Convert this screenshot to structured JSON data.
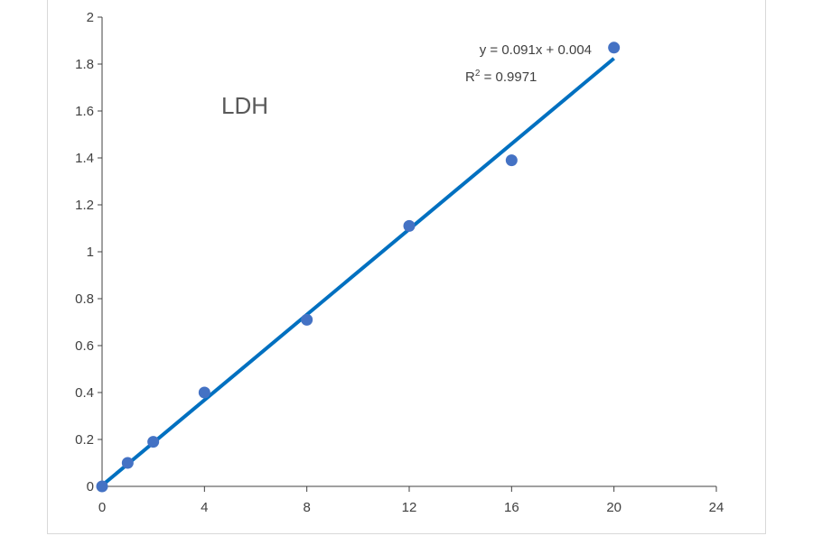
{
  "chart_data": {
    "type": "scatter",
    "title": "LDH",
    "xlabel": "",
    "ylabel": "",
    "xlim": [
      0,
      24
    ],
    "ylim": [
      0,
      2
    ],
    "x_ticks": [
      "0",
      "4",
      "8",
      "12",
      "16",
      "20",
      "24"
    ],
    "y_ticks": [
      "0",
      "0.2",
      "0.4",
      "0.6",
      "0.8",
      "1",
      "1.2",
      "1.4",
      "1.6",
      "1.8",
      "2"
    ],
    "grid": false,
    "legend": "none",
    "series": [
      {
        "x": [
          0,
          1,
          2,
          4,
          8,
          12,
          16,
          20
        ],
        "y": [
          0.0,
          0.1,
          0.19,
          0.4,
          0.71,
          1.11,
          1.39,
          1.87
        ],
        "color": "#4472c4"
      }
    ],
    "trendline": {
      "type": "linear",
      "slope": 0.091,
      "intercept": 0.004,
      "x_range": [
        0,
        20
      ],
      "color": "#0070c0",
      "equation_label": "y = 0.091x + 0.004",
      "r2_prefix": "R",
      "r2_sup": "2",
      "r2_value": " = 0.9971"
    }
  }
}
